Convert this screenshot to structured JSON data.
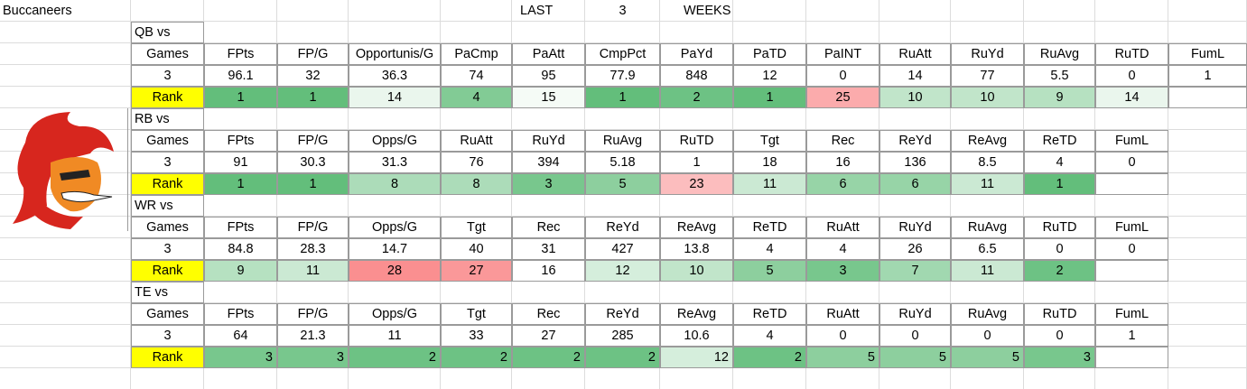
{
  "header": {
    "team": "Buccaneers",
    "last": "LAST",
    "weeks_count": 3,
    "weeks": "WEEKS"
  },
  "sections": [
    {
      "title": "QB vs",
      "rank_label": "Rank",
      "rank_align": "center",
      "headers": [
        "Games",
        "FPts",
        "FP/G",
        "Opportunis/G",
        "PaCmp",
        "PaAtt",
        "CmpPct",
        "PaYd",
        "PaTD",
        "PaINT",
        "RuAtt",
        "RuYd",
        "RuAvg",
        "RuTD",
        "FumL"
      ],
      "values": [
        3,
        96.1,
        32,
        36.3,
        74,
        95,
        77.9,
        848,
        12,
        0,
        14,
        77,
        5.5,
        0,
        1
      ],
      "ranks": [
        1,
        1,
        14,
        4,
        15,
        1,
        2,
        1,
        25,
        10,
        10,
        9,
        14
      ]
    },
    {
      "title": "RB vs",
      "rank_label": "Rank",
      "rank_align": "center",
      "headers": [
        "Games",
        "FPts",
        "FP/G",
        "Opps/G",
        "RuAtt",
        "RuYd",
        "RuAvg",
        "RuTD",
        "Tgt",
        "Rec",
        "ReYd",
        "ReAvg",
        "ReTD",
        "FumL"
      ],
      "values": [
        3,
        91,
        30.3,
        31.3,
        76,
        394,
        5.18,
        1,
        18,
        16,
        136,
        8.5,
        4,
        0
      ],
      "ranks": [
        1,
        1,
        8,
        8,
        3,
        5,
        23,
        11,
        6,
        6,
        11,
        1
      ]
    },
    {
      "title": "WR vs",
      "rank_label": "Rank",
      "rank_align": "center",
      "headers": [
        "Games",
        "FPts",
        "FP/G",
        "Opps/G",
        "Tgt",
        "Rec",
        "ReYd",
        "ReAvg",
        "ReTD",
        "RuAtt",
        "RuYd",
        "RuAvg",
        "RuTD",
        "FumL"
      ],
      "values": [
        3,
        84.8,
        28.3,
        14.7,
        40,
        31,
        427,
        13.8,
        4,
        4,
        26,
        6.5,
        0,
        0
      ],
      "ranks": [
        9,
        11,
        28,
        27,
        16,
        12,
        10,
        5,
        3,
        7,
        11,
        2
      ]
    },
    {
      "title": "TE vs",
      "rank_label": "Rank",
      "rank_align": "right",
      "headers": [
        "Games",
        "FPts",
        "FP/G",
        "Opps/G",
        "Tgt",
        "Rec",
        "ReYd",
        "ReAvg",
        "ReTD",
        "RuAtt",
        "RuYd",
        "RuAvg",
        "RuTD",
        "FumL"
      ],
      "values": [
        3,
        64,
        21.3,
        11,
        33,
        27,
        285,
        10.6,
        4,
        0,
        0,
        0,
        0,
        1
      ],
      "ranks": [
        3,
        3,
        2,
        2,
        2,
        2,
        12,
        2,
        5,
        5,
        5,
        3
      ]
    }
  ]
}
